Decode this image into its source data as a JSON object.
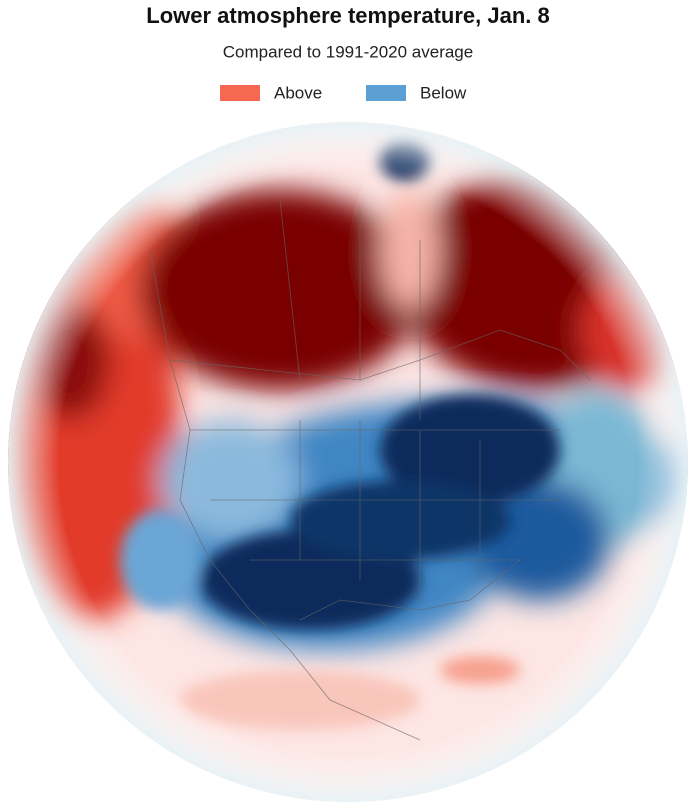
{
  "header": {
    "title": "Lower atmosphere temperature, Jan. 8",
    "subtitle": "Compared to 1991-2020 average"
  },
  "legend": [
    {
      "label": "Above",
      "color": "#f4694f"
    },
    {
      "label": "Below",
      "color": "#5c9fd3"
    }
  ]
}
